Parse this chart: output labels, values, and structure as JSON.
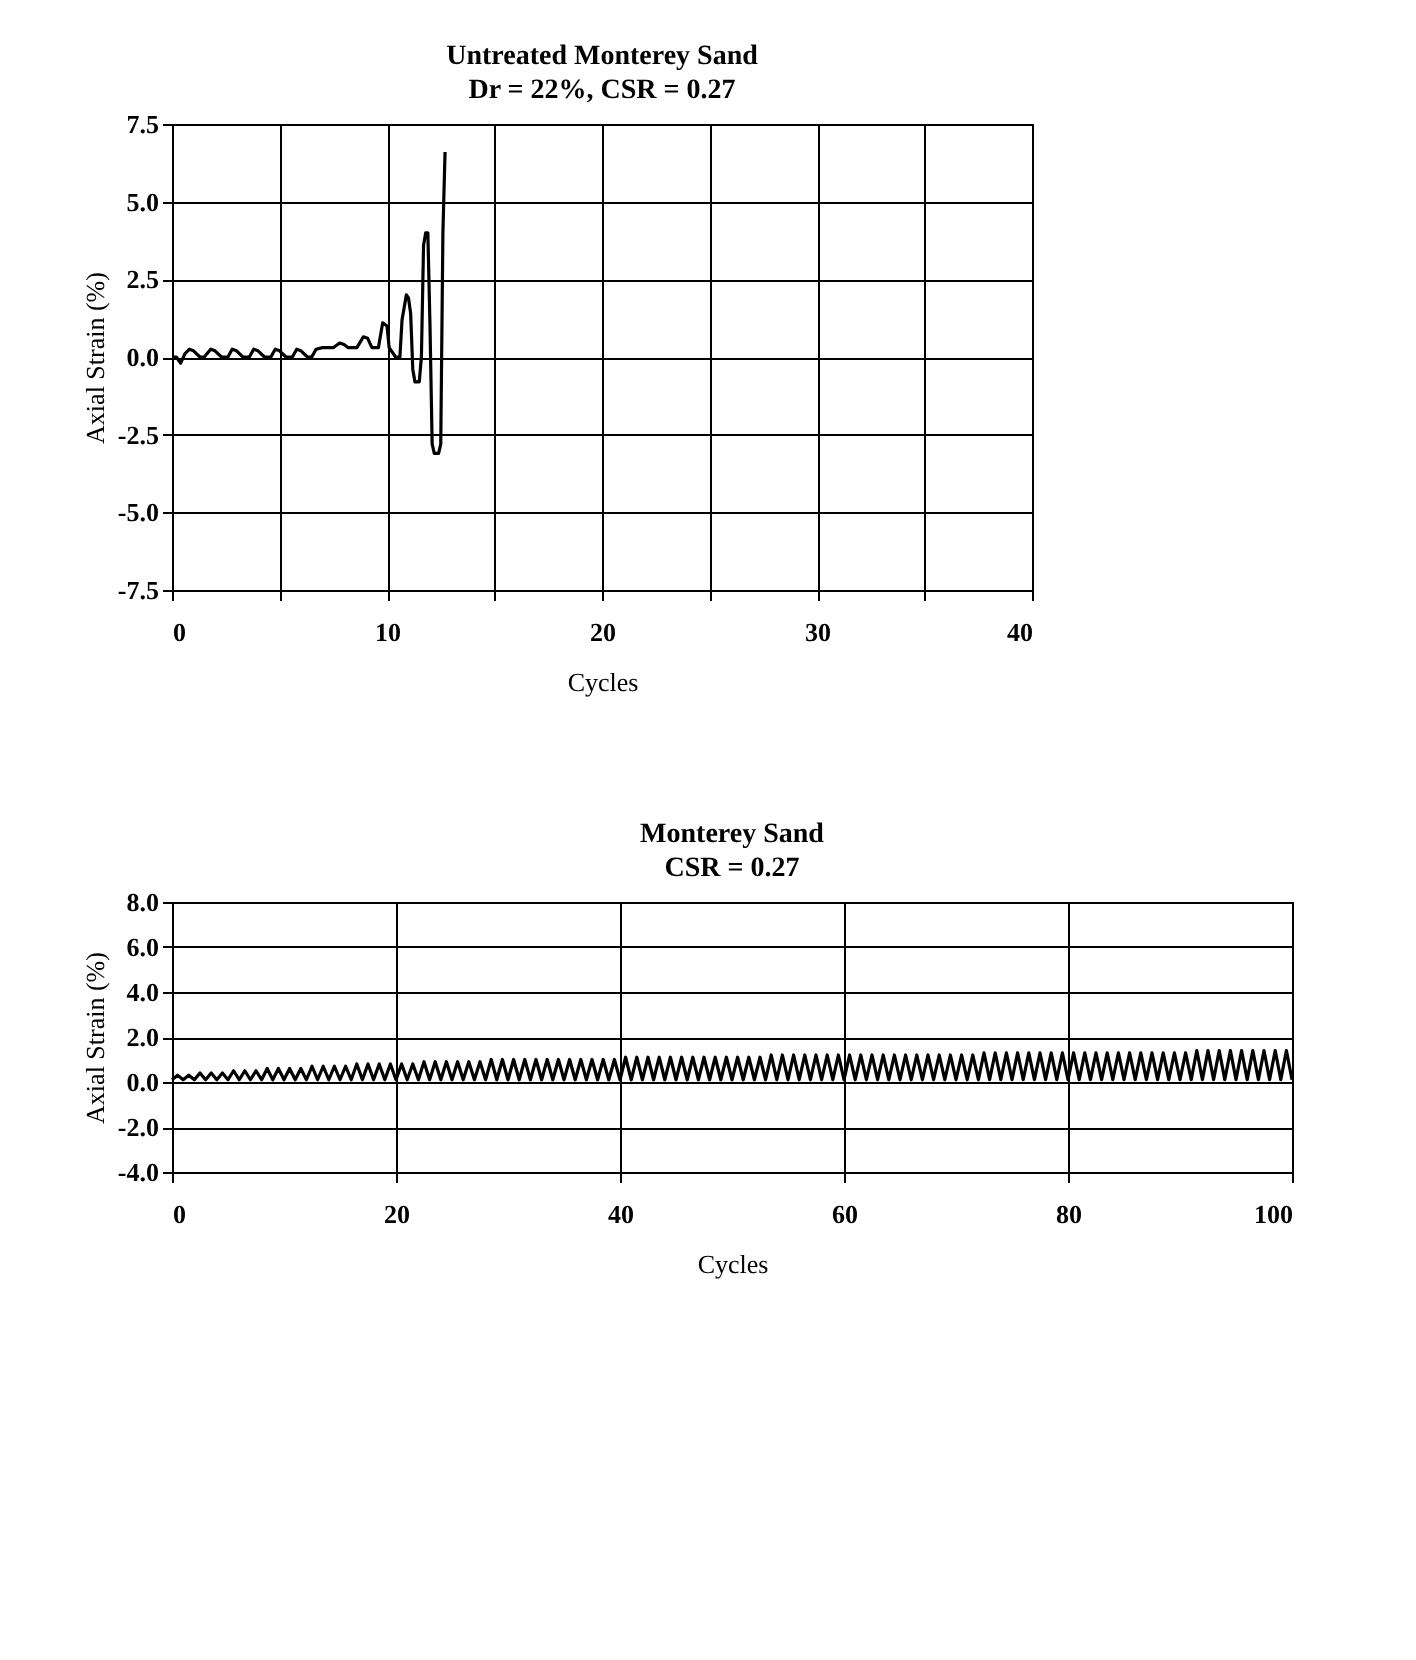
{
  "chart_data": [
    {
      "type": "line",
      "title": "Untreated Monterey Sand",
      "subtitle": "Dr = 22%, CSR = 0.27",
      "xlabel": "Cycles",
      "ylabel": "Axial Strain (%)",
      "grid": true,
      "line_style": "solid",
      "marker": "none",
      "xlim": [
        0,
        40
      ],
      "xticks": [
        0,
        {
          "value": 5,
          "label": null
        },
        10,
        {
          "value": 15,
          "label": null
        },
        20,
        {
          "value": 25,
          "label": null
        },
        30,
        {
          "value": 35,
          "label": null
        },
        40
      ],
      "ylim": [
        -7.5,
        7.5
      ],
      "yticks": [
        {
          "value": -7.5,
          "label": "-7.5"
        },
        {
          "value": -5,
          "label": "-5.0"
        },
        {
          "value": -2.5,
          "label": "-2.5"
        },
        {
          "value": 0,
          "label": "0.0"
        },
        {
          "value": 2.5,
          "label": "2.5"
        },
        {
          "value": 5,
          "label": "5.0"
        },
        {
          "value": 7.5,
          "label": "7.5"
        }
      ],
      "series": [
        {
          "color": "#000000",
          "x": [
            0,
            0.2,
            0.4,
            0.6,
            0.8,
            1.0,
            1.3,
            1.5,
            1.8,
            2.0,
            2.3,
            2.6,
            2.8,
            3.0,
            3.3,
            3.6,
            3.8,
            4.0,
            4.3,
            4.6,
            4.8,
            5.0,
            5.3,
            5.6,
            5.8,
            6.0,
            6.3,
            6.5,
            6.7,
            7.0,
            7.5,
            7.8,
            8.0,
            8.2,
            8.6,
            8.9,
            9.1,
            9.3,
            9.6,
            9.8,
            10.0,
            10.1,
            10.4,
            10.6,
            10.7,
            10.9,
            11.0,
            11.1,
            11.2,
            11.3,
            11.5,
            11.6,
            11.7,
            11.8,
            11.9,
            12.0,
            12.1,
            12.2,
            12.4,
            12.5,
            12.6,
            12.7
          ],
          "values": [
            0,
            0,
            -0.2,
            0.1,
            0.25,
            0.2,
            0,
            0,
            0.25,
            0.2,
            0,
            0,
            0.25,
            0.2,
            0,
            0,
            0.25,
            0.2,
            0,
            0,
            0.25,
            0.2,
            0,
            0,
            0.25,
            0.2,
            0,
            0,
            0.25,
            0.3,
            0.3,
            0.45,
            0.4,
            0.3,
            0.3,
            0.65,
            0.6,
            0.3,
            0.3,
            1.1,
            1.0,
            0.3,
            0,
            0,
            1.2,
            2.0,
            1.9,
            1.4,
            -0.4,
            -0.8,
            -0.8,
            0,
            3.6,
            4.0,
            4.0,
            1.0,
            -2.8,
            -3.1,
            -3.1,
            -2.8,
            4.0,
            6.6
          ]
        }
      ]
    },
    {
      "type": "line",
      "title": "Monterey Sand",
      "subtitle": "CSR = 0.27",
      "xlabel": "Cycles",
      "ylabel": "Axial Strain (%)",
      "grid": true,
      "line_style": "solid",
      "marker": "none",
      "xlim": [
        0,
        100
      ],
      "xticks": [
        0,
        20,
        40,
        60,
        80,
        100
      ],
      "ylim": [
        -4,
        8
      ],
      "yticks": [
        {
          "value": -4,
          "label": "-4.0"
        },
        {
          "value": -2,
          "label": "-2.0"
        },
        {
          "value": 0,
          "label": "0.0"
        },
        {
          "value": 2,
          "label": "2.0"
        },
        {
          "value": 4,
          "label": "4.0"
        },
        {
          "value": 6,
          "label": "6.0"
        },
        {
          "value": 8,
          "label": "8.0"
        }
      ],
      "series": [
        {
          "color": "#000000",
          "x": [
            0,
            0.5,
            1,
            1.5,
            2,
            2.5,
            3,
            3.5,
            4,
            4.5,
            5,
            5.5,
            6,
            6.5,
            7,
            7.5,
            8,
            8.5,
            9,
            9.5,
            10,
            10.5,
            11,
            11.5,
            12,
            12.5,
            13,
            13.5,
            14,
            14.5,
            15,
            15.5,
            16,
            16.5,
            17,
            17.5,
            18,
            18.5,
            19,
            19.5,
            20,
            20.5,
            21,
            21.5,
            22,
            22.5,
            23,
            23.5,
            24,
            24.5,
            25,
            25.5,
            26,
            26.5,
            27,
            27.5,
            28,
            28.5,
            29,
            29.5,
            30,
            30.5,
            31,
            31.5,
            32,
            32.5,
            33,
            33.5,
            34,
            34.5,
            35,
            35.5,
            36,
            36.5,
            37,
            37.5,
            38,
            38.5,
            39,
            39.5,
            40,
            40.5,
            41,
            41.5,
            42,
            42.5,
            43,
            43.5,
            44,
            44.5,
            45,
            45.5,
            46,
            46.5,
            47,
            47.5,
            48,
            48.5,
            49,
            49.5,
            50,
            50.5,
            51,
            51.5,
            52,
            52.5,
            53,
            53.5,
            54,
            54.5,
            55,
            55.5,
            56,
            56.5,
            57,
            57.5,
            58,
            58.5,
            59,
            59.5,
            60,
            60.5,
            61,
            61.5,
            62,
            62.5,
            63,
            63.5,
            64,
            64.5,
            65,
            65.5,
            66,
            66.5,
            67,
            67.5,
            68,
            68.5,
            69,
            69.5,
            70,
            70.5,
            71,
            71.5,
            72,
            72.5,
            73,
            73.5,
            74,
            74.5,
            75,
            75.5,
            76,
            76.5,
            77,
            77.5,
            78,
            78.5,
            79,
            79.5,
            80,
            80.5,
            81,
            81.5,
            82,
            82.5,
            83,
            83.5,
            84,
            84.5,
            85,
            85.5,
            86,
            86.5,
            87,
            87.5,
            88,
            88.5,
            89,
            89.5,
            90,
            90.5,
            91,
            91.5,
            92,
            92.5,
            93,
            93.5,
            94,
            94.5,
            95,
            95.5,
            96,
            96.5,
            97,
            97.5,
            98,
            98.5,
            99,
            99.5,
            100
          ],
          "values": [
            0.1,
            0.3,
            0.1,
            0.3,
            0.1,
            0.4,
            0.1,
            0.4,
            0.1,
            0.4,
            0.1,
            0.5,
            0.1,
            0.5,
            0.1,
            0.5,
            0.1,
            0.6,
            0.1,
            0.6,
            0.1,
            0.6,
            0.1,
            0.6,
            0.1,
            0.7,
            0.1,
            0.7,
            0.1,
            0.7,
            0.1,
            0.7,
            0.1,
            0.8,
            0.1,
            0.8,
            0.1,
            0.8,
            0.1,
            0.8,
            0.1,
            0.8,
            0.1,
            0.8,
            0.1,
            0.9,
            0.1,
            0.9,
            0.1,
            0.9,
            0.1,
            0.9,
            0.1,
            0.9,
            0.1,
            0.9,
            0.1,
            1.0,
            0.1,
            1.0,
            0.1,
            1.0,
            0.1,
            1.0,
            0.1,
            1.0,
            0.1,
            1.0,
            0.1,
            1.0,
            0.1,
            1.0,
            0.1,
            1.0,
            0.1,
            1.0,
            0.1,
            1.0,
            0.1,
            1.0,
            0.1,
            1.1,
            0.1,
            1.1,
            0.1,
            1.1,
            0.1,
            1.1,
            0.1,
            1.1,
            0.1,
            1.1,
            0.1,
            1.1,
            0.1,
            1.1,
            0.1,
            1.1,
            0.1,
            1.1,
            0.1,
            1.1,
            0.1,
            1.1,
            0.1,
            1.1,
            0.1,
            1.2,
            0.1,
            1.2,
            0.1,
            1.2,
            0.1,
            1.2,
            0.1,
            1.2,
            0.1,
            1.2,
            0.1,
            1.2,
            0.1,
            1.2,
            0.1,
            1.2,
            0.1,
            1.2,
            0.1,
            1.2,
            0.1,
            1.2,
            0.1,
            1.2,
            0.1,
            1.2,
            0.1,
            1.2,
            0.1,
            1.2,
            0.1,
            1.2,
            0.1,
            1.2,
            0.1,
            1.2,
            0.1,
            1.3,
            0.1,
            1.3,
            0.1,
            1.3,
            0.1,
            1.3,
            0.1,
            1.3,
            0.1,
            1.3,
            0.1,
            1.3,
            0.1,
            1.3,
            0.1,
            1.3,
            0.1,
            1.3,
            0.1,
            1.3,
            0.1,
            1.3,
            0.1,
            1.3,
            0.1,
            1.3,
            0.1,
            1.3,
            0.1,
            1.3,
            0.1,
            1.3,
            0.1,
            1.3,
            0.1,
            1.3,
            0.1,
            1.4,
            0.1,
            1.4,
            0.1,
            1.4,
            0.1,
            1.4,
            0.1,
            1.4,
            0.1,
            1.4,
            0.1,
            1.4,
            0.1,
            1.4,
            0.1,
            1.4,
            0.1
          ]
        }
      ]
    }
  ]
}
